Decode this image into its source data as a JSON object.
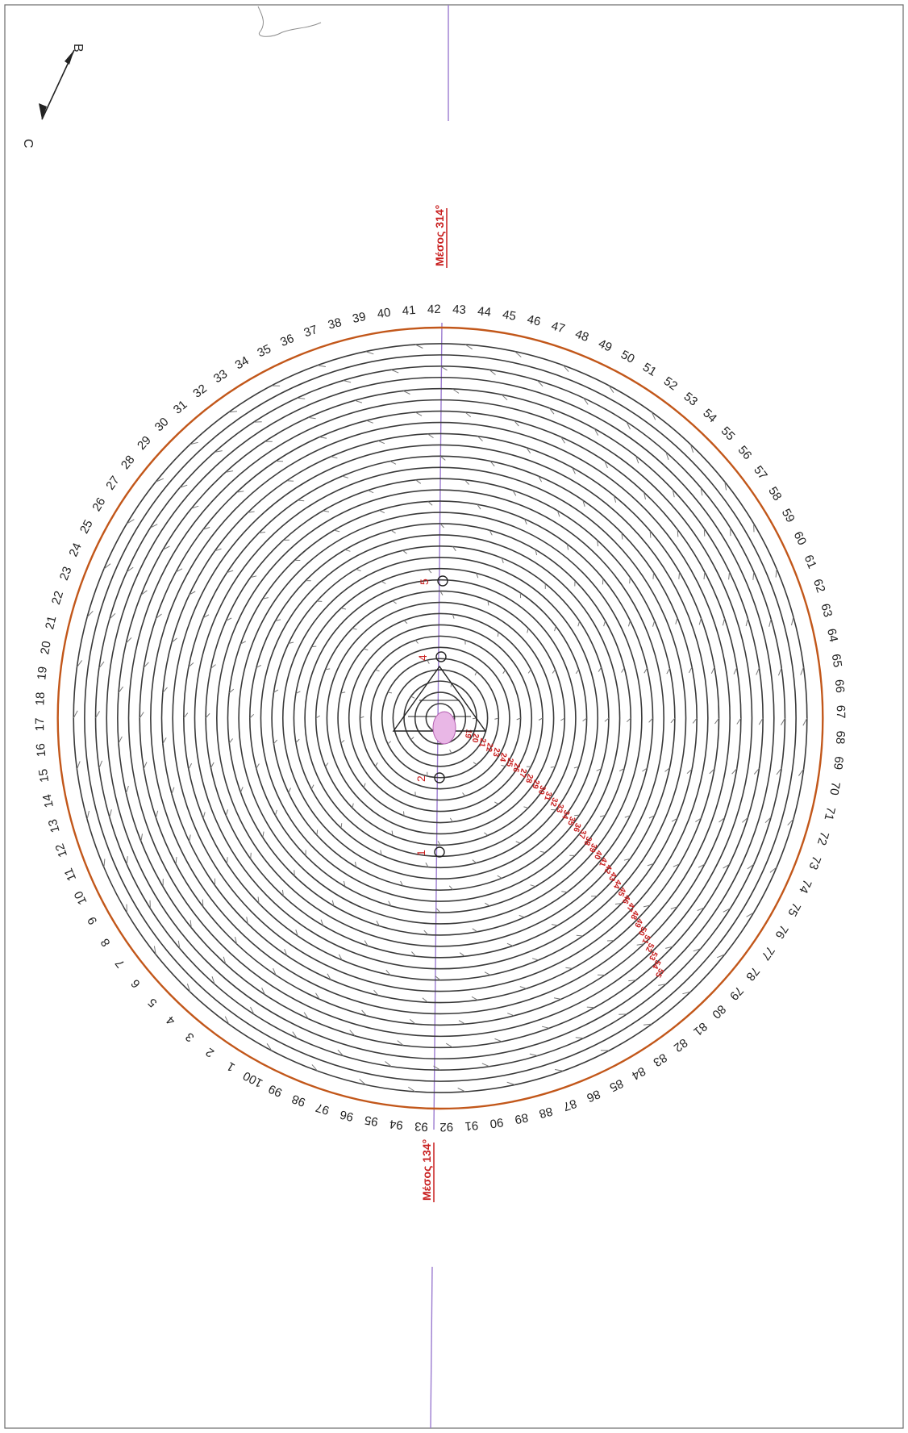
{
  "diagram": {
    "ring_numbers": [
      "1",
      "2",
      "3",
      "4",
      "5",
      "6",
      "7",
      "8",
      "9",
      "10",
      "11",
      "12",
      "13",
      "14",
      "15",
      "16",
      "17",
      "18",
      "19",
      "20",
      "21",
      "22",
      "23",
      "24",
      "25",
      "26",
      "27",
      "28",
      "29",
      "30",
      "31",
      "32",
      "33",
      "34",
      "35",
      "36",
      "37",
      "38",
      "39",
      "40",
      "41",
      "42",
      "43",
      "44",
      "45",
      "46",
      "47",
      "48",
      "49",
      "50",
      "51",
      "52",
      "53",
      "54",
      "55",
      "56",
      "57",
      "58",
      "59",
      "60",
      "61",
      "62",
      "63",
      "64",
      "65",
      "66",
      "67",
      "68",
      "69",
      "70",
      "71",
      "72",
      "73",
      "74",
      "75",
      "76",
      "77",
      "78",
      "79",
      "80",
      "81",
      "82",
      "83",
      "84",
      "85",
      "86",
      "87",
      "88",
      "89",
      "90",
      "91",
      "92",
      "93",
      "94",
      "95",
      "96",
      "97",
      "98",
      "99",
      "100"
    ],
    "inner_numbers": [
      "19",
      "20",
      "21",
      "22",
      "23",
      "24",
      "25",
      "26",
      "27",
      "28",
      "29",
      "30",
      "31",
      "32",
      "33",
      "34",
      "35",
      "36",
      "37",
      "38",
      "39",
      "40",
      "41",
      "42",
      "43",
      "44",
      "45",
      "46",
      "47",
      "48",
      "49",
      "50",
      "51",
      "52",
      "53",
      "54",
      "55"
    ],
    "markers": [
      {
        "id": "marker-1",
        "label": "1"
      },
      {
        "id": "marker-2",
        "label": "2"
      },
      {
        "id": "marker-4",
        "label": "4"
      },
      {
        "id": "marker-5",
        "label": "5"
      }
    ],
    "direction_top": "Μέσος 314°",
    "direction_bottom": "Μέσος 134°",
    "compass": {
      "letter_a": "B",
      "letter_b": "C"
    },
    "colors": {
      "ring": "#3a3a3a",
      "outer_ring": "#c2571a",
      "axis": "#9b7bd0",
      "accent": "#c81e1e"
    }
  }
}
